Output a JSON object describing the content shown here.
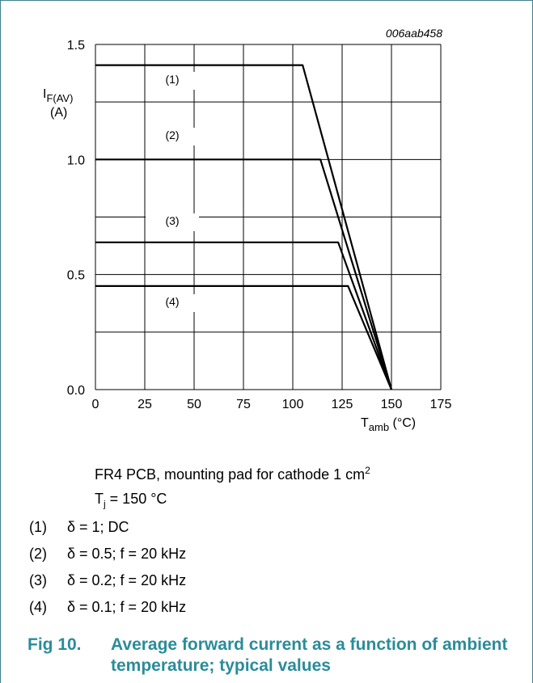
{
  "figure_id": "006aab458",
  "chart_data": {
    "type": "line",
    "title": "",
    "xlabel": "Tamb (°C)",
    "ylabel": "IF(AV) (A)",
    "xlabel_main": "T",
    "xlabel_sub": "amb",
    "xlabel_unit": "(°C)",
    "ylabel_main": "I",
    "ylabel_sub": "F(AV)",
    "ylabel_unit": "(A)",
    "xlim": [
      0,
      175
    ],
    "ylim": [
      0,
      1.5
    ],
    "x_ticks": [
      "0",
      "25",
      "50",
      "75",
      "100",
      "125",
      "150",
      "175"
    ],
    "y_ticks": [
      "0.0",
      "0.5",
      "1.0",
      "1.5"
    ],
    "y_tick_values": [
      0,
      0.5,
      1.0,
      1.5
    ],
    "x_tick_values": [
      0,
      25,
      50,
      75,
      100,
      125,
      150,
      175
    ],
    "grid": true,
    "series": [
      {
        "name": "(1)",
        "x": [
          0,
          105,
          150
        ],
        "y": [
          1.41,
          1.41,
          0
        ]
      },
      {
        "name": "(2)",
        "x": [
          0,
          114,
          150
        ],
        "y": [
          1.0,
          1.0,
          0
        ]
      },
      {
        "name": "(3)",
        "x": [
          0,
          123,
          150
        ],
        "y": [
          0.64,
          0.64,
          0
        ]
      },
      {
        "name": "(4)",
        "x": [
          0,
          128,
          150
        ],
        "y": [
          0.45,
          0.45,
          0
        ]
      }
    ]
  },
  "notes": {
    "condition_1": "FR4 PCB, mounting pad for cathode 1 cm",
    "condition_1_sup": "2",
    "condition_2_main": "T",
    "condition_2_sub": "j",
    "condition_2_rest": " = 150 °C",
    "items": [
      {
        "num": "(1)",
        "text": "δ = 1; DC"
      },
      {
        "num": "(2)",
        "text": "δ = 0.5; f = 20 kHz"
      },
      {
        "num": "(3)",
        "text": "δ = 0.2; f = 20 kHz"
      },
      {
        "num": "(4)",
        "text": "δ = 0.1; f = 20 kHz"
      }
    ]
  },
  "caption": {
    "number": "Fig 10.",
    "text": "Average forward current as a function of ambient temperature; typical values"
  },
  "colors": {
    "caption": "#2a8c9a",
    "frame": "#3f7f8f",
    "line": "#000000"
  }
}
